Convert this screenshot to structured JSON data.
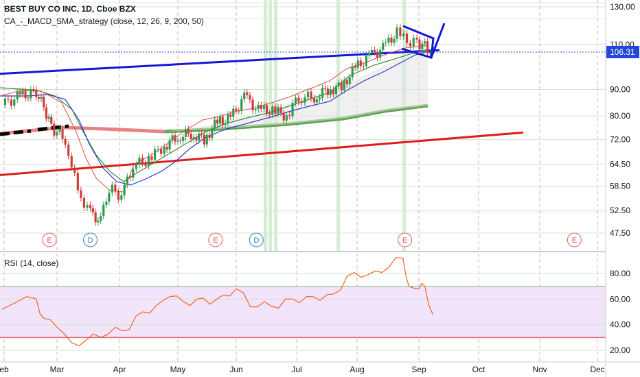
{
  "header": {
    "symbol_title": "BEST BUY CO INC, 1D, Cboe BZX",
    "indicator": "CA_-_MACD_SMA_strategy (close, 12, 26, 9, 200, 50)"
  },
  "rsi_panel": {
    "label": "RSI (14, close)"
  },
  "last_price_tag": "106.31",
  "colors": {
    "blue_line": "#1515d6",
    "red_line": "#e01b1b",
    "sma200": "#5aa34a",
    "sma50_fast": "#3a8f3a",
    "up_candle": "#2e9b4f",
    "down_candle": "#d43a3a",
    "rsi_line": "#f26522",
    "rsi_band": "#f1e4fb",
    "grid_green": "#cfe6cf"
  },
  "chart_data": [
    {
      "type": "candlestick",
      "title": "BEST BUY CO INC, 1D, Cboe BZX",
      "xlabel": "",
      "ylabel": "",
      "x_ticks": [
        "Feb",
        "Mar",
        "Apr",
        "May",
        "Jun",
        "Jul",
        "Aug",
        "Sep",
        "Oct",
        "Nov",
        "Dec"
      ],
      "y_ticks": [
        130.0,
        110.0,
        90.0,
        80.0,
        72.0,
        64.5,
        58.5,
        52.5,
        47.5
      ],
      "ylim": [
        44,
        135
      ],
      "scale": "log",
      "grid": true,
      "last_price": 106.31,
      "events": [
        {
          "date": "2020-02-27",
          "label": "E"
        },
        {
          "date": "2020-03-18",
          "label": "D"
        },
        {
          "date": "2020-05-21",
          "label": "E"
        },
        {
          "date": "2020-06-11",
          "label": "D"
        },
        {
          "date": "2020-08-25",
          "label": "E"
        },
        {
          "date": "2020-11-19",
          "label": "E"
        }
      ],
      "series": [
        {
          "name": "Close",
          "points": [
            [
              "2020-01-31",
              84
            ],
            [
              "2020-02-10",
              87
            ],
            [
              "2020-02-20",
              89
            ],
            [
              "2020-02-24",
              83
            ],
            [
              "2020-02-28",
              76
            ],
            [
              "2020-03-06",
              72
            ],
            [
              "2020-03-12",
              57
            ],
            [
              "2020-03-18",
              52
            ],
            [
              "2020-03-23",
              50
            ],
            [
              "2020-03-27",
              58
            ],
            [
              "2020-04-02",
              56
            ],
            [
              "2020-04-08",
              64
            ],
            [
              "2020-04-16",
              66
            ],
            [
              "2020-04-24",
              70
            ],
            [
              "2020-05-01",
              73
            ],
            [
              "2020-05-08",
              74
            ],
            [
              "2020-05-15",
              72
            ],
            [
              "2020-05-22",
              78
            ],
            [
              "2020-05-29",
              79
            ],
            [
              "2020-06-05",
              87
            ],
            [
              "2020-06-12",
              82
            ],
            [
              "2020-06-19",
              82
            ],
            [
              "2020-06-26",
              80
            ],
            [
              "2020-07-02",
              87
            ],
            [
              "2020-07-10",
              87
            ],
            [
              "2020-07-17",
              90
            ],
            [
              "2020-07-24",
              91
            ],
            [
              "2020-07-31",
              99
            ],
            [
              "2020-08-07",
              104
            ],
            [
              "2020-08-14",
              108
            ],
            [
              "2020-08-21",
              116
            ],
            [
              "2020-08-26",
              111
            ],
            [
              "2020-08-31",
              111
            ],
            [
              "2020-09-04",
              109
            ],
            [
              "2020-09-08",
              106.31
            ]
          ]
        }
      ]
    },
    {
      "type": "line",
      "title": "RSI (14, close)",
      "y_ticks": [
        80.0,
        60.0,
        40.0,
        20.0
      ],
      "ylim": [
        15,
        100
      ],
      "band": [
        30,
        70
      ],
      "series": [
        {
          "name": "RSI",
          "points": [
            [
              "2020-01-31",
              52
            ],
            [
              "2020-02-10",
              58
            ],
            [
              "2020-02-20",
              60
            ],
            [
              "2020-02-24",
              45
            ],
            [
              "2020-03-02",
              38
            ],
            [
              "2020-03-09",
              26
            ],
            [
              "2020-03-16",
              28
            ],
            [
              "2020-03-23",
              30
            ],
            [
              "2020-03-30",
              38
            ],
            [
              "2020-04-06",
              36
            ],
            [
              "2020-04-13",
              50
            ],
            [
              "2020-04-20",
              55
            ],
            [
              "2020-04-27",
              62
            ],
            [
              "2020-05-04",
              58
            ],
            [
              "2020-05-11",
              60
            ],
            [
              "2020-05-18",
              56
            ],
            [
              "2020-05-25",
              63
            ],
            [
              "2020-06-01",
              68
            ],
            [
              "2020-06-08",
              54
            ],
            [
              "2020-06-15",
              58
            ],
            [
              "2020-06-22",
              53
            ],
            [
              "2020-06-29",
              60
            ],
            [
              "2020-07-06",
              62
            ],
            [
              "2020-07-13",
              59
            ],
            [
              "2020-07-20",
              64
            ],
            [
              "2020-07-27",
              78
            ],
            [
              "2020-08-03",
              77
            ],
            [
              "2020-08-10",
              82
            ],
            [
              "2020-08-17",
              85
            ],
            [
              "2020-08-24",
              92
            ],
            [
              "2020-08-27",
              70
            ],
            [
              "2020-09-01",
              68
            ],
            [
              "2020-09-04",
              70
            ],
            [
              "2020-09-08",
              48
            ]
          ]
        }
      ]
    }
  ]
}
